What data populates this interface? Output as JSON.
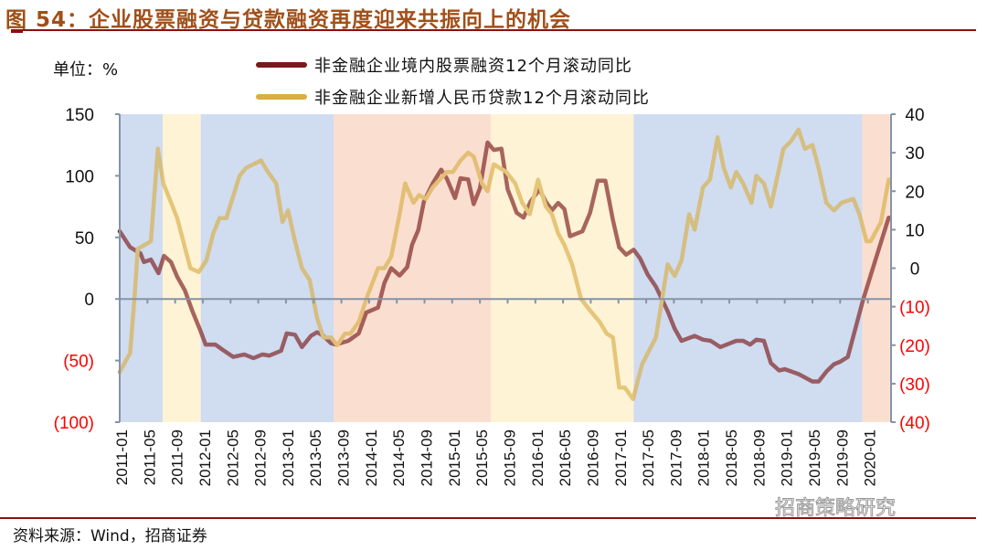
{
  "title": "图 54：企业股票融资与贷款融资再度迎来共振向上的机会",
  "unit_label": "单位：%",
  "source": "资料来源：Wind，招商证券",
  "watermark": "招商策略研究",
  "colors": {
    "stock_series": "#7A1A1A",
    "loan_series": "#D8AE45",
    "negative_tick": "#FF0000",
    "region_blue": "#D0DCF0",
    "region_yellow": "#FFF3D6",
    "region_pink": "#FADFD0"
  },
  "chart_data": {
    "type": "line",
    "title": "图 54：企业股票融资与贷款融资再度迎来共振向上的机会",
    "x_unit": "months since 2011-01",
    "x_range": [
      0,
      111
    ],
    "x_tick_labels": [
      "2011-01",
      "2011-05",
      "2011-09",
      "2012-01",
      "2012-05",
      "2012-09",
      "2013-01",
      "2013-05",
      "2013-09",
      "2014-01",
      "2014-05",
      "2014-09",
      "2015-01",
      "2015-05",
      "2015-09",
      "2016-01",
      "2016-05",
      "2016-09",
      "2017-01",
      "2017-05",
      "2017-09",
      "2018-01",
      "2018-05",
      "2018-09",
      "2019-01",
      "2019-05",
      "2019-09",
      "2020-01"
    ],
    "left_axis": {
      "range": [
        -100,
        150
      ],
      "ticks": [
        150,
        100,
        50,
        0,
        -50,
        -100
      ],
      "tick_labels": [
        "150",
        "100",
        "50",
        "0",
        "(50)",
        "(100)"
      ]
    },
    "right_axis": {
      "range": [
        -40,
        40
      ],
      "ticks": [
        40,
        30,
        20,
        10,
        0,
        -10,
        -20,
        -30,
        -40
      ],
      "tick_labels": [
        "40",
        "30",
        "20",
        "10",
        "0",
        "(10)",
        "(20)",
        "(30)",
        "(40)"
      ]
    },
    "legend_position": "top",
    "regions": [
      {
        "start": 0,
        "end": 6.2,
        "phase": "blue"
      },
      {
        "start": 6.2,
        "end": 11.7,
        "phase": "yellow"
      },
      {
        "start": 11.7,
        "end": 30.9,
        "phase": "blue"
      },
      {
        "start": 30.9,
        "end": 53.6,
        "phase": "pink"
      },
      {
        "start": 53.6,
        "end": 74.2,
        "phase": "yellow"
      },
      {
        "start": 74.2,
        "end": 107.2,
        "phase": "blue"
      },
      {
        "start": 107.2,
        "end": 111.2,
        "phase": "pink"
      }
    ],
    "series": [
      {
        "name": "非金融企业境内股票融资12个月滚动同比",
        "axis": "left",
        "points": [
          [
            0,
            55
          ],
          [
            1.5,
            42
          ],
          [
            3,
            37
          ],
          [
            3.5,
            30
          ],
          [
            4.5,
            32
          ],
          [
            5.6,
            21
          ],
          [
            6.4,
            35
          ],
          [
            7.4,
            30
          ],
          [
            8.3,
            18
          ],
          [
            9.4,
            7
          ],
          [
            10.5,
            -10
          ],
          [
            11.6,
            -25
          ],
          [
            12.4,
            -37
          ],
          [
            13.8,
            -37
          ],
          [
            14.8,
            -41
          ],
          [
            16.4,
            -47
          ],
          [
            18,
            -45
          ],
          [
            19.3,
            -48
          ],
          [
            20.6,
            -45
          ],
          [
            21.6,
            -46
          ],
          [
            23.3,
            -42
          ],
          [
            24.1,
            -28
          ],
          [
            25.3,
            -29
          ],
          [
            26.3,
            -39
          ],
          [
            27.6,
            -30
          ],
          [
            28.5,
            -27
          ],
          [
            29.4,
            -30
          ],
          [
            30.5,
            -36
          ],
          [
            31.2,
            -37
          ],
          [
            33,
            -34
          ],
          [
            34.5,
            -28
          ],
          [
            35.6,
            -11
          ],
          [
            37.3,
            -7
          ],
          [
            38.2,
            13
          ],
          [
            39.2,
            25
          ],
          [
            40.4,
            19
          ],
          [
            41.5,
            26
          ],
          [
            42.2,
            44
          ],
          [
            43.1,
            56
          ],
          [
            43.9,
            79
          ],
          [
            45.2,
            94
          ],
          [
            46.4,
            105
          ],
          [
            47.2,
            98
          ],
          [
            48.4,
            82
          ],
          [
            49.2,
            98
          ],
          [
            50.3,
            97
          ],
          [
            51.1,
            77
          ],
          [
            52,
            90
          ],
          [
            53.1,
            127
          ],
          [
            54,
            121
          ],
          [
            55.1,
            122
          ],
          [
            56,
            89
          ],
          [
            56.7,
            79
          ],
          [
            57.3,
            70
          ],
          [
            58.3,
            66
          ],
          [
            59.3,
            79
          ],
          [
            60.6,
            89
          ],
          [
            61.5,
            79
          ],
          [
            62.4,
            72
          ],
          [
            63.3,
            78
          ],
          [
            64.2,
            73
          ],
          [
            65,
            51
          ],
          [
            66.8,
            55
          ],
          [
            67.9,
            70
          ],
          [
            69,
            96
          ],
          [
            70.1,
            96
          ],
          [
            71.2,
            64
          ],
          [
            72.1,
            42
          ],
          [
            73.1,
            36
          ],
          [
            74.2,
            40
          ],
          [
            75.1,
            33
          ],
          [
            76.2,
            20
          ],
          [
            77.4,
            10
          ],
          [
            79.1,
            -10
          ],
          [
            80.1,
            -24
          ],
          [
            81.1,
            -34
          ],
          [
            83,
            -30
          ],
          [
            84.2,
            -33
          ],
          [
            85.3,
            -34
          ],
          [
            86.7,
            -39
          ],
          [
            89,
            -34
          ],
          [
            90,
            -34
          ],
          [
            91,
            -37
          ],
          [
            91.9,
            -33
          ],
          [
            93,
            -34
          ],
          [
            94,
            -52
          ],
          [
            95.2,
            -58
          ],
          [
            96,
            -57
          ],
          [
            98,
            -61
          ],
          [
            100,
            -67
          ],
          [
            100.9,
            -67
          ],
          [
            102,
            -59
          ],
          [
            103.1,
            -53
          ],
          [
            104,
            -51
          ],
          [
            105.1,
            -47
          ],
          [
            107.3,
            -1
          ],
          [
            109,
            30
          ],
          [
            111,
            66
          ]
        ]
      },
      {
        "name": "非金融企业新增人民币贷款12个月滚动同比",
        "axis": "right",
        "points": [
          [
            0,
            -27
          ],
          [
            1.5,
            -22
          ],
          [
            2.2,
            -6
          ],
          [
            2.6,
            5
          ],
          [
            4.5,
            7
          ],
          [
            5.5,
            31
          ],
          [
            6.3,
            22
          ],
          [
            7.2,
            18
          ],
          [
            8.3,
            13
          ],
          [
            10.2,
            0
          ],
          [
            11.4,
            -1
          ],
          [
            12.5,
            2
          ],
          [
            13.5,
            9
          ],
          [
            14.4,
            13
          ],
          [
            15.4,
            13
          ],
          [
            17.3,
            24
          ],
          [
            18.2,
            26
          ],
          [
            19.3,
            27
          ],
          [
            20.4,
            28
          ],
          [
            21.4,
            25
          ],
          [
            22.6,
            22
          ],
          [
            23.5,
            12
          ],
          [
            24.3,
            15
          ],
          [
            25.3,
            7
          ],
          [
            26.3,
            0
          ],
          [
            27.4,
            -3
          ],
          [
            28.5,
            -13
          ],
          [
            29.4,
            -18
          ],
          [
            30.5,
            -18
          ],
          [
            31.4,
            -20
          ],
          [
            32.5,
            -17
          ],
          [
            33.3,
            -17
          ],
          [
            34.5,
            -14
          ],
          [
            35.8,
            -7
          ],
          [
            37.3,
            0
          ],
          [
            38.2,
            0
          ],
          [
            39.2,
            3
          ],
          [
            40.4,
            14
          ],
          [
            41.2,
            22
          ],
          [
            42.4,
            17
          ],
          [
            43.2,
            19
          ],
          [
            44.2,
            18
          ],
          [
            45.2,
            21
          ],
          [
            47.2,
            25
          ],
          [
            48.1,
            25
          ],
          [
            49.2,
            28
          ],
          [
            50.3,
            30
          ],
          [
            51.1,
            29
          ],
          [
            52.3,
            22
          ],
          [
            53.1,
            20
          ],
          [
            54,
            27
          ],
          [
            55.8,
            25
          ],
          [
            57.1,
            22
          ],
          [
            58.1,
            17
          ],
          [
            59.2,
            14
          ],
          [
            60.4,
            23
          ],
          [
            61.5,
            16
          ],
          [
            62.4,
            14
          ],
          [
            63.3,
            9
          ],
          [
            64.2,
            6
          ],
          [
            65.3,
            1
          ],
          [
            66.6,
            -8
          ],
          [
            67.9,
            -11
          ],
          [
            69.3,
            -14
          ],
          [
            70.3,
            -17
          ],
          [
            71.2,
            -18
          ],
          [
            72.1,
            -31
          ],
          [
            72.9,
            -31
          ],
          [
            74.1,
            -34
          ],
          [
            75.4,
            -25
          ],
          [
            77.4,
            -18
          ],
          [
            79.1,
            1
          ],
          [
            80.1,
            -2
          ],
          [
            81.1,
            2
          ],
          [
            82.2,
            14
          ],
          [
            83,
            10
          ],
          [
            84.2,
            21
          ],
          [
            85.2,
            23
          ],
          [
            86.3,
            34
          ],
          [
            87.2,
            26
          ],
          [
            88.2,
            21
          ],
          [
            89,
            25
          ],
          [
            90,
            22
          ],
          [
            91.2,
            17
          ],
          [
            91.9,
            24
          ],
          [
            93,
            22
          ],
          [
            94,
            16
          ],
          [
            95.8,
            31
          ],
          [
            96.9,
            33
          ],
          [
            98,
            36
          ],
          [
            98.9,
            31
          ],
          [
            100,
            32
          ],
          [
            100.9,
            26
          ],
          [
            102,
            17
          ],
          [
            103.1,
            15
          ],
          [
            104.2,
            17
          ],
          [
            105.9,
            18
          ],
          [
            106.8,
            14
          ],
          [
            107.8,
            7
          ],
          [
            108.4,
            7
          ],
          [
            109.9,
            12
          ],
          [
            111,
            23
          ]
        ]
      }
    ]
  }
}
